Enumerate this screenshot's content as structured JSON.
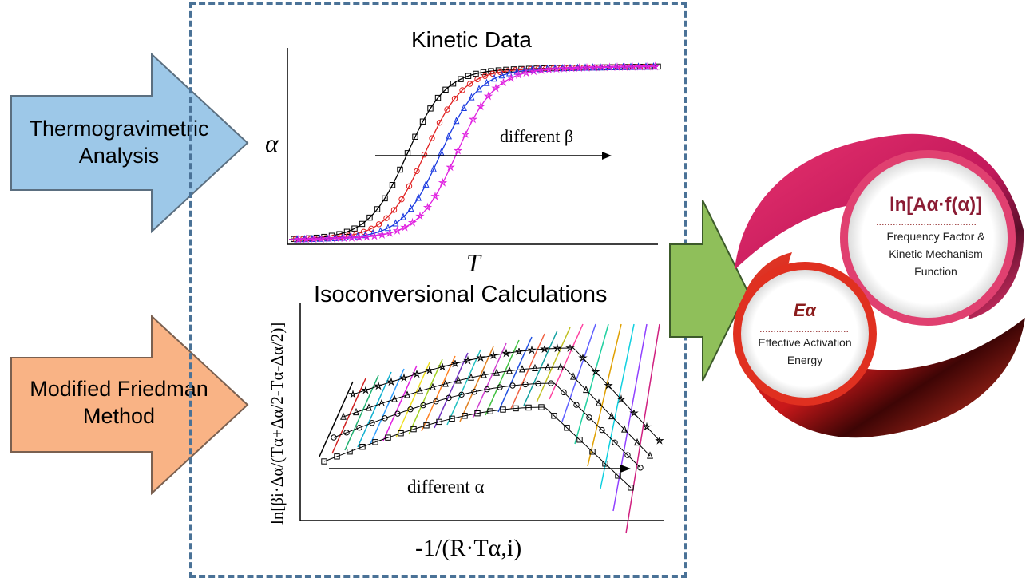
{
  "left_arrows": {
    "top": {
      "line1": "Thermogravimetric",
      "line2": "Analysis",
      "fill": "#9dc8e8"
    },
    "bottom": {
      "line1": "Modified Friedman",
      "line2": "Method",
      "fill": "#f9b385"
    }
  },
  "panel": {
    "border_color": "#4a7297",
    "kinetic": {
      "title": "Kinetic Data",
      "ylabel": "α",
      "xlabel": "T",
      "annotation": "different β"
    },
    "iso": {
      "title": "Isoconversional Calculations",
      "ylabel": "ln[βi·Δα/(Tα+Δα/2-Tα-Δα/2)]",
      "xlabel": "-1/(R·Tα,i)",
      "annotation": "different α"
    }
  },
  "right_arrow": {
    "fill": "#8fbf5a"
  },
  "result": {
    "top": {
      "formula": "ln[Aα·f(α)]",
      "line1": "Frequency Factor &",
      "line2": "Kinetic Mechanism",
      "line3": "Function",
      "color": "#d81b60"
    },
    "bottom": {
      "symbol": "Eα",
      "line1": "Effective Activation",
      "line2": "Energy",
      "color": "#d32f2f"
    }
  },
  "chart_data": [
    {
      "type": "line",
      "title": "Kinetic Data",
      "xlabel": "T",
      "ylabel": "α",
      "series": [
        {
          "color": "#000000",
          "marker": "square"
        },
        {
          "color": "#e02020",
          "marker": "circle"
        },
        {
          "color": "#1a3ae0",
          "marker": "triangle"
        },
        {
          "color": "#e020e0",
          "marker": "star"
        }
      ]
    },
    {
      "type": "line",
      "title": "Isoconversional Calculations",
      "xlabel": "-1/(R·Tα,i)",
      "ylabel": "ln[βi·Δα/(Tα+Δα/2-Tα-Δα/2)]"
    }
  ]
}
